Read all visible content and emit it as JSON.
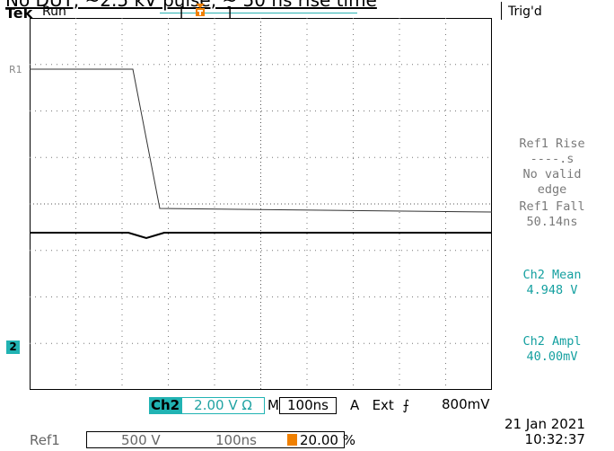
{
  "caption": "No DUT, ~2.5 kV pulse, ~ 50 ns rise time",
  "header": {
    "brand": "Tek",
    "run_state": "Run",
    "trigger_state": "Trig'd"
  },
  "markers": {
    "ref1": "R1",
    "ch2": "2"
  },
  "measurements": {
    "ref1_rise_title": "Ref1 Rise",
    "ref1_rise_value": "----.s",
    "ref1_rise_note1": "No valid",
    "ref1_rise_note2": "edge",
    "ref1_fall_title": "Ref1 Fall",
    "ref1_fall_value": "50.14ns",
    "ch2_mean_title": "Ch2 Mean",
    "ch2_mean_value": "4.948 V",
    "ch2_ampl_title": "Ch2 Ampl",
    "ch2_ampl_value": "40.00mV"
  },
  "settings": {
    "channel": "Ch2",
    "volts_div": "2.00 V Ω",
    "m_label": "M",
    "time_div": "100ns",
    "trigger_mode": "A",
    "trigger_source": "Ext",
    "trigger_level": "800mV"
  },
  "reference": {
    "label": "Ref1",
    "volts": "500 V",
    "time": "100ns",
    "position": "20.00 %"
  },
  "timestamp": {
    "date": "21 Jan  2021",
    "time": "10:32:37"
  },
  "colors": {
    "accent": "#21b3b3",
    "trigger": "#f08000",
    "measure_gray": "#7a7a7a",
    "measure_teal": "#14a0a0"
  }
}
